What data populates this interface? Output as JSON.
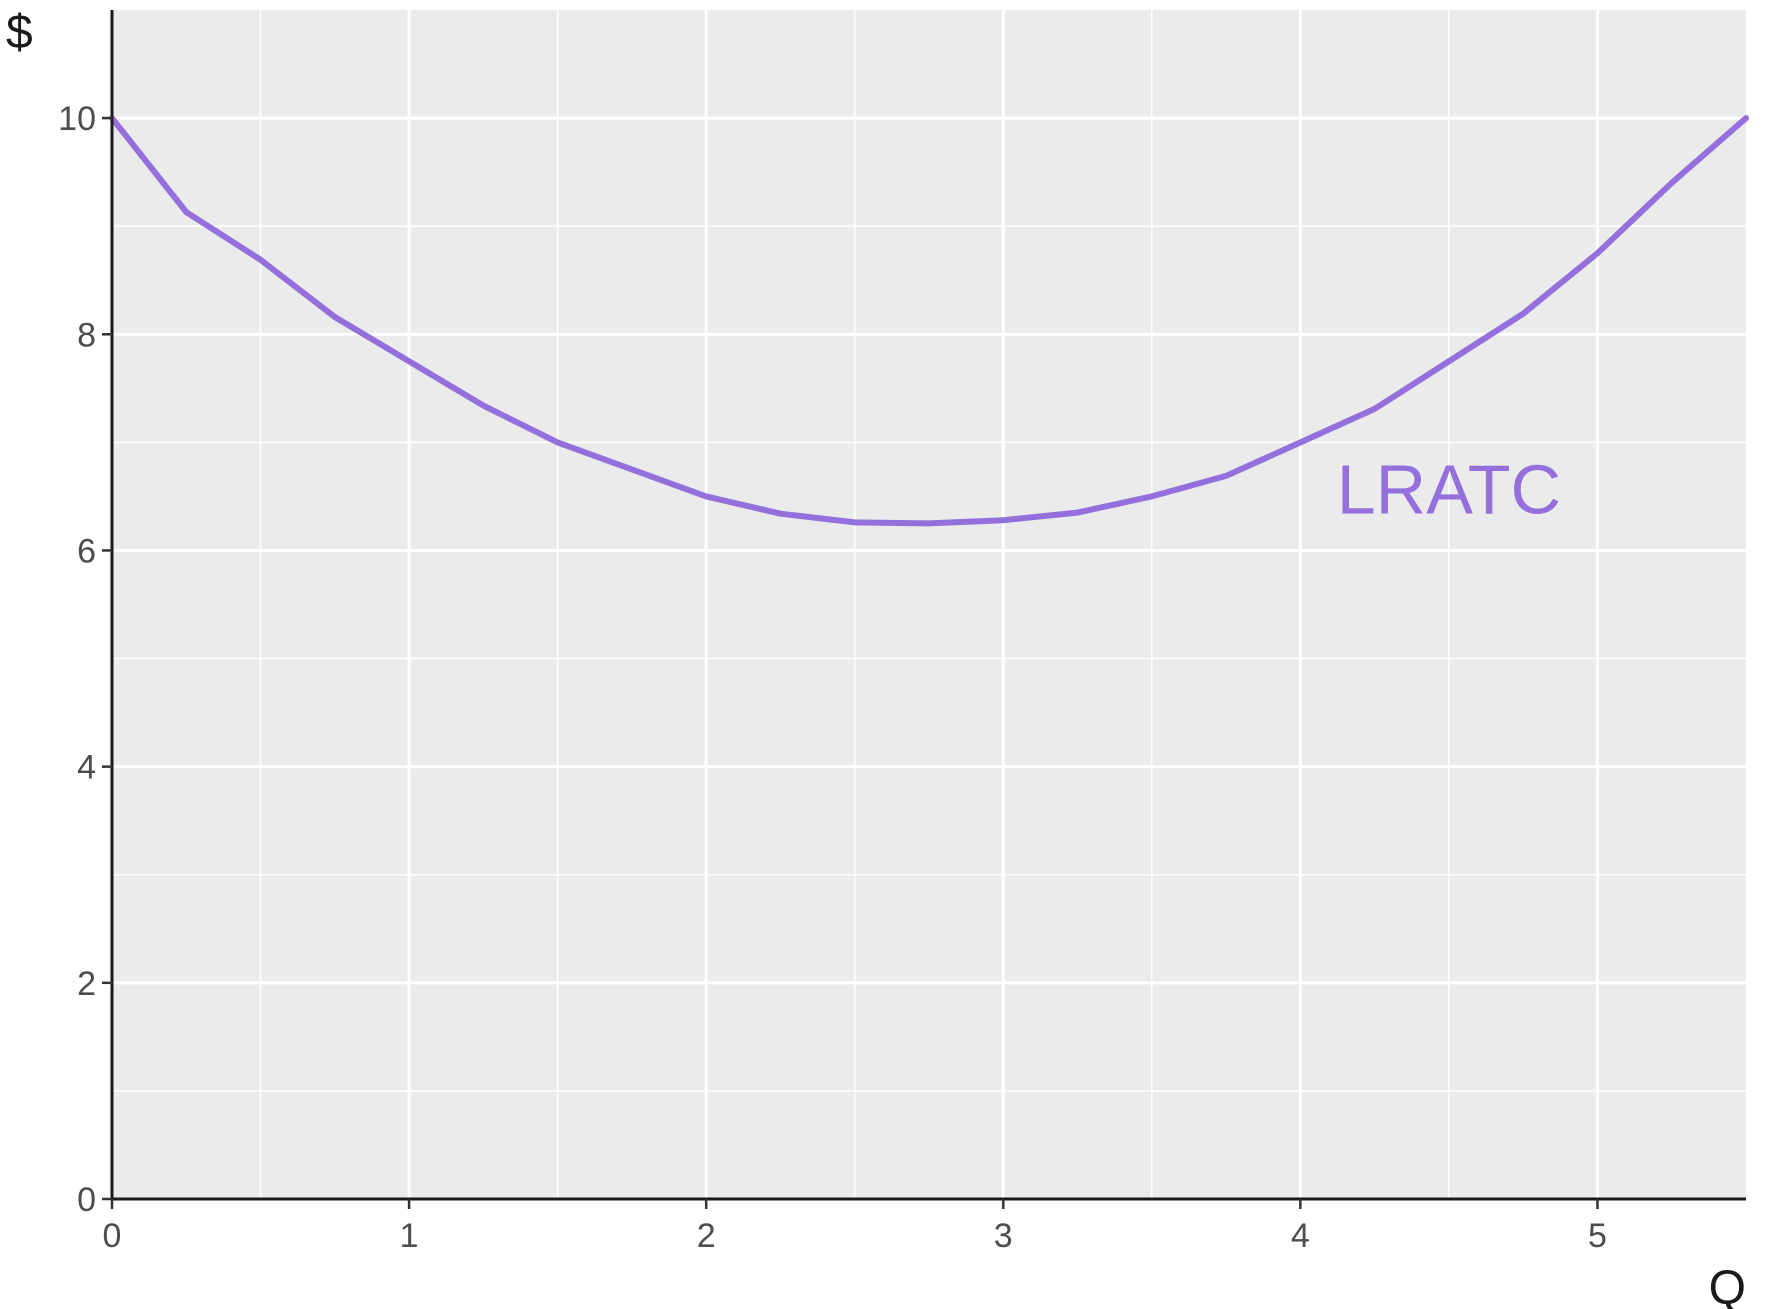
{
  "chart_data": {
    "type": "line",
    "title": "",
    "xlabel": "Q",
    "ylabel": "$",
    "xlim": [
      0,
      5.5
    ],
    "ylim": [
      0,
      11
    ],
    "x_ticks": [
      0,
      1,
      2,
      3,
      4,
      5
    ],
    "y_ticks": [
      0,
      2,
      4,
      6,
      8,
      10
    ],
    "grid": true,
    "legend": "none",
    "series": [
      {
        "name": "LRATC",
        "color": "#9370DB",
        "x": [
          0,
          0.25,
          0.5,
          0.75,
          1,
          1.25,
          1.5,
          1.75,
          2,
          2.25,
          2.5,
          2.75,
          3,
          3.25,
          3.5,
          3.75,
          4,
          4.25,
          4.5,
          4.75,
          5,
          5.25,
          5.5
        ],
        "y": [
          10,
          9.13,
          8.69,
          8.16,
          7.75,
          7.34,
          7.0,
          6.75,
          6.5,
          6.34,
          6.26,
          6.25,
          6.28,
          6.35,
          6.5,
          6.69,
          7.0,
          7.31,
          7.75,
          8.19,
          8.75,
          9.4,
          10
        ]
      }
    ],
    "annotations": [
      {
        "text": "LRATC",
        "x": 4.5,
        "y": 6.25,
        "color": "#9370DB"
      }
    ]
  }
}
